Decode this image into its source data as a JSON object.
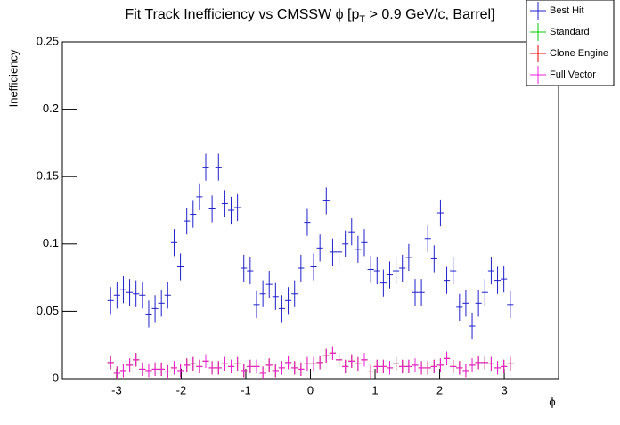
{
  "chart_data": {
    "type": "errorbar",
    "title": [
      "Fit Track Inefficiency vs CMSSW ϕ [p",
      "T",
      " > 0.9 GeV/c, Barrel]"
    ],
    "xlabel": "ϕ",
    "ylabel": "Inefficiency",
    "x": [
      -3.093,
      -2.994,
      -2.896,
      -2.798,
      -2.7,
      -2.601,
      -2.503,
      -2.405,
      -2.307,
      -2.209,
      -2.11,
      -2.012,
      -1.914,
      -1.816,
      -1.718,
      -1.62,
      -1.522,
      -1.423,
      -1.325,
      -1.227,
      -1.129,
      -1.031,
      -0.933,
      -0.834,
      -0.736,
      -0.638,
      -0.54,
      -0.442,
      -0.344,
      -0.245,
      -0.147,
      -0.049,
      0.049,
      0.147,
      0.245,
      0.344,
      0.442,
      0.54,
      0.638,
      0.736,
      0.834,
      0.933,
      1.031,
      1.129,
      1.227,
      1.325,
      1.423,
      1.522,
      1.62,
      1.718,
      1.816,
      1.914,
      2.012,
      2.11,
      2.209,
      2.307,
      2.405,
      2.503,
      2.601,
      2.7,
      2.798,
      2.896,
      2.994,
      3.093
    ],
    "series": [
      {
        "name": "Best Hit",
        "color": "#1f1fcc",
        "error": 0.01,
        "values": [
          0.058,
          0.062,
          0.066,
          0.064,
          0.063,
          0.062,
          0.048,
          0.052,
          0.056,
          0.062,
          0.101,
          0.083,
          0.117,
          0.122,
          0.135,
          0.157,
          0.126,
          0.157,
          0.13,
          0.125,
          0.127,
          0.082,
          0.08,
          0.055,
          0.063,
          0.07,
          0.061,
          0.052,
          0.058,
          0.063,
          0.082,
          0.116,
          0.083,
          0.097,
          0.132,
          0.094,
          0.094,
          0.1,
          0.109,
          0.096,
          0.101,
          0.081,
          0.08,
          0.071,
          0.077,
          0.08,
          0.082,
          0.09,
          0.064,
          0.064,
          0.104,
          0.089,
          0.123,
          0.073,
          0.08,
          0.053,
          0.056,
          0.039,
          0.056,
          0.064,
          0.08,
          0.073,
          0.074,
          0.055
        ]
      },
      {
        "name": "Standard",
        "color": "#00cc00",
        "error": 0.005,
        "values": [
          0.012,
          0.004,
          0.006,
          0.01,
          0.014,
          0.007,
          0.006,
          0.007,
          0.007,
          0.005,
          0.008,
          0.006,
          0.01,
          0.011,
          0.009,
          0.013,
          0.008,
          0.008,
          0.011,
          0.009,
          0.011,
          0.006,
          0.009,
          0.009,
          0.004,
          0.01,
          0.006,
          0.008,
          0.012,
          0.008,
          0.007,
          0.011,
          0.011,
          0.012,
          0.017,
          0.019,
          0.014,
          0.009,
          0.013,
          0.011,
          0.014,
          0.005,
          0.009,
          0.009,
          0.008,
          0.011,
          0.009,
          0.009,
          0.01,
          0.008,
          0.008,
          0.009,
          0.01,
          0.015,
          0.009,
          0.008,
          0.006,
          0.01,
          0.012,
          0.012,
          0.011,
          0.008,
          0.009,
          0.011
        ]
      },
      {
        "name": "Clone Engine",
        "color": "#e60000",
        "error": 0.005,
        "values": [
          0.012,
          0.004,
          0.006,
          0.01,
          0.014,
          0.007,
          0.006,
          0.007,
          0.007,
          0.005,
          0.008,
          0.006,
          0.01,
          0.011,
          0.009,
          0.013,
          0.008,
          0.008,
          0.011,
          0.009,
          0.011,
          0.006,
          0.009,
          0.009,
          0.004,
          0.01,
          0.006,
          0.008,
          0.012,
          0.008,
          0.007,
          0.011,
          0.011,
          0.012,
          0.017,
          0.019,
          0.014,
          0.009,
          0.013,
          0.011,
          0.014,
          0.005,
          0.009,
          0.009,
          0.008,
          0.011,
          0.009,
          0.009,
          0.01,
          0.008,
          0.008,
          0.009,
          0.01,
          0.015,
          0.009,
          0.008,
          0.006,
          0.01,
          0.012,
          0.012,
          0.011,
          0.008,
          0.009,
          0.011
        ]
      },
      {
        "name": "Full Vector",
        "color": "#f020e0",
        "error": 0.005,
        "values": [
          0.012,
          0.004,
          0.006,
          0.01,
          0.014,
          0.007,
          0.006,
          0.007,
          0.007,
          0.005,
          0.008,
          0.006,
          0.01,
          0.011,
          0.009,
          0.013,
          0.008,
          0.008,
          0.011,
          0.009,
          0.011,
          0.006,
          0.009,
          0.009,
          0.004,
          0.01,
          0.006,
          0.008,
          0.012,
          0.008,
          0.007,
          0.011,
          0.011,
          0.012,
          0.017,
          0.019,
          0.014,
          0.009,
          0.013,
          0.011,
          0.014,
          0.005,
          0.009,
          0.009,
          0.008,
          0.011,
          0.009,
          0.009,
          0.01,
          0.008,
          0.008,
          0.009,
          0.01,
          0.015,
          0.009,
          0.008,
          0.006,
          0.01,
          0.012,
          0.012,
          0.011,
          0.008,
          0.009,
          0.011
        ]
      }
    ],
    "xlim": [
      -3.84,
      3.84
    ],
    "xticks": [
      -3,
      -2,
      -1,
      0,
      1,
      2,
      3
    ],
    "ylim": [
      0,
      0.25
    ],
    "yticks": [
      0,
      0.05,
      0.1,
      0.15,
      0.2,
      0.25
    ],
    "legend": "upper right"
  }
}
